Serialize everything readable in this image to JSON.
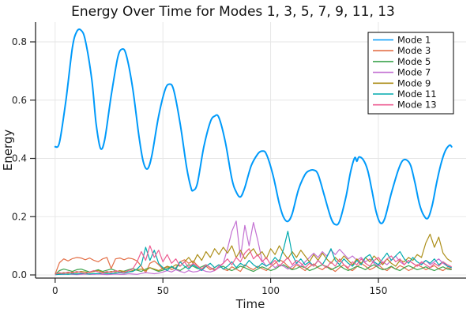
{
  "chart_data": {
    "type": "line",
    "title": "Energy Over Time for Modes 1, 3, 5, 7, 9, 11, 13",
    "xlabel": "Time",
    "ylabel": "Energy",
    "xlim": [
      -9.1,
      190.7
    ],
    "ylim": [
      -0.0108,
      0.8678
    ],
    "xticks": [
      0,
      50,
      100,
      150
    ],
    "yticks": [
      0.0,
      0.2,
      0.4,
      0.6,
      0.8
    ],
    "grid": true,
    "legend_position": "top-right",
    "background_color": "#FFFFFF",
    "grid_color": "#E5E5E5",
    "axis_color": "#262626",
    "series": [
      {
        "name": "Mode 1",
        "color": "#009AFA",
        "width": 2.0,
        "smooth": true,
        "x": [
          0,
          2,
          5,
          8,
          10,
          12,
          14,
          17,
          19,
          21,
          23,
          26,
          29,
          31,
          33,
          36,
          39,
          41,
          43,
          45,
          48,
          51,
          53,
          55,
          58,
          61,
          63,
          64,
          66,
          69,
          72,
          74,
          76,
          79,
          82,
          84,
          86,
          88,
          91,
          94,
          96,
          98,
          101,
          104,
          106,
          108,
          110,
          113,
          116,
          118,
          120,
          122,
          125,
          128,
          130,
          132,
          135,
          137,
          139,
          140,
          141,
          143,
          145,
          147,
          149,
          151,
          153,
          156,
          159,
          161,
          163,
          165,
          167,
          169,
          171,
          173,
          175,
          177,
          179,
          181,
          183,
          184
        ],
        "y": [
          0.44,
          0.455,
          0.6,
          0.78,
          0.835,
          0.84,
          0.805,
          0.67,
          0.52,
          0.435,
          0.465,
          0.615,
          0.745,
          0.775,
          0.755,
          0.64,
          0.47,
          0.385,
          0.365,
          0.415,
          0.545,
          0.635,
          0.655,
          0.635,
          0.52,
          0.37,
          0.3,
          0.29,
          0.315,
          0.44,
          0.525,
          0.545,
          0.54,
          0.455,
          0.33,
          0.285,
          0.268,
          0.3,
          0.375,
          0.415,
          0.425,
          0.415,
          0.345,
          0.245,
          0.198,
          0.184,
          0.21,
          0.295,
          0.345,
          0.358,
          0.36,
          0.345,
          0.27,
          0.195,
          0.173,
          0.185,
          0.27,
          0.35,
          0.402,
          0.39,
          0.405,
          0.395,
          0.36,
          0.29,
          0.215,
          0.178,
          0.195,
          0.28,
          0.355,
          0.39,
          0.395,
          0.375,
          0.315,
          0.245,
          0.205,
          0.195,
          0.24,
          0.315,
          0.38,
          0.425,
          0.445,
          0.44
        ]
      },
      {
        "name": "Mode 3",
        "color": "#E36F46",
        "width": 1.2,
        "smooth": false,
        "x_start": 0,
        "x_step": 2,
        "y": [
          0.003,
          0.042,
          0.055,
          0.048,
          0.056,
          0.06,
          0.058,
          0.052,
          0.058,
          0.05,
          0.045,
          0.055,
          0.06,
          0.022,
          0.055,
          0.058,
          0.052,
          0.058,
          0.055,
          0.048,
          0.03,
          0.008,
          0.04,
          0.048,
          0.035,
          0.02,
          0.028,
          0.018,
          0.025,
          0.045,
          0.052,
          0.04,
          0.048,
          0.032,
          0.02,
          0.03,
          0.018,
          0.025,
          0.035,
          0.02,
          0.015,
          0.028,
          0.02,
          0.012,
          0.035,
          0.025,
          0.018,
          0.03,
          0.022,
          0.015,
          0.028,
          0.04,
          0.052,
          0.045,
          0.03,
          0.02,
          0.035,
          0.025,
          0.015,
          0.028,
          0.038,
          0.025,
          0.018,
          0.03,
          0.022,
          0.012,
          0.025,
          0.035,
          0.02,
          0.015,
          0.028,
          0.04,
          0.03,
          0.018,
          0.025,
          0.035,
          0.022,
          0.015,
          0.028,
          0.02,
          0.032,
          0.025,
          0.015,
          0.022,
          0.035,
          0.028,
          0.018,
          0.025,
          0.032,
          0.02,
          0.015,
          0.025,
          0.02
        ]
      },
      {
        "name": "Mode 5",
        "color": "#3DA44E",
        "width": 1.2,
        "smooth": false,
        "x_start": 0,
        "x_step": 2,
        "y": [
          0.002,
          0.015,
          0.02,
          0.016,
          0.012,
          0.018,
          0.02,
          0.015,
          0.01,
          0.014,
          0.018,
          0.012,
          0.016,
          0.02,
          0.015,
          0.01,
          0.013,
          0.018,
          0.022,
          0.016,
          0.012,
          0.02,
          0.025,
          0.018,
          0.012,
          0.016,
          0.022,
          0.028,
          0.02,
          0.015,
          0.025,
          0.035,
          0.03,
          0.022,
          0.028,
          0.035,
          0.025,
          0.018,
          0.025,
          0.03,
          0.02,
          0.015,
          0.022,
          0.03,
          0.025,
          0.018,
          0.012,
          0.02,
          0.028,
          0.022,
          0.015,
          0.02,
          0.03,
          0.035,
          0.025,
          0.018,
          0.022,
          0.03,
          0.025,
          0.015,
          0.02,
          0.028,
          0.035,
          0.028,
          0.018,
          0.025,
          0.032,
          0.022,
          0.015,
          0.022,
          0.03,
          0.025,
          0.018,
          0.028,
          0.035,
          0.025,
          0.018,
          0.022,
          0.03,
          0.02,
          0.015,
          0.025,
          0.032,
          0.025,
          0.018,
          0.022,
          0.028,
          0.02,
          0.015,
          0.022,
          0.028,
          0.02,
          0.018
        ]
      },
      {
        "name": "Mode 7",
        "color": "#C371D2",
        "width": 1.2,
        "smooth": false,
        "x_start": 0,
        "x_step": 2,
        "y": [
          0.001,
          0.002,
          0.002,
          0.003,
          0.002,
          0.001,
          0.002,
          0.003,
          0.002,
          0.002,
          0.003,
          0.002,
          0.001,
          0.002,
          0.003,
          0.002,
          0.002,
          0.004,
          0.003,
          0.002,
          0.005,
          0.008,
          0.006,
          0.004,
          0.006,
          0.01,
          0.015,
          0.01,
          0.018,
          0.012,
          0.008,
          0.015,
          0.01,
          0.012,
          0.018,
          0.012,
          0.01,
          0.015,
          0.025,
          0.04,
          0.09,
          0.15,
          0.185,
          0.06,
          0.17,
          0.1,
          0.18,
          0.12,
          0.05,
          0.03,
          0.04,
          0.025,
          0.035,
          0.03,
          0.02,
          0.03,
          0.04,
          0.03,
          0.045,
          0.06,
          0.075,
          0.06,
          0.08,
          0.065,
          0.085,
          0.07,
          0.088,
          0.072,
          0.055,
          0.065,
          0.05,
          0.06,
          0.045,
          0.055,
          0.04,
          0.03,
          0.045,
          0.035,
          0.05,
          0.065,
          0.045,
          0.035,
          0.05,
          0.04,
          0.03,
          0.04,
          0.05,
          0.035,
          0.045,
          0.055,
          0.04,
          0.03,
          0.025
        ]
      },
      {
        "name": "Mode 9",
        "color": "#AC8E18",
        "width": 1.2,
        "smooth": false,
        "x_start": 0,
        "x_step": 2,
        "y": [
          0.002,
          0.005,
          0.008,
          0.006,
          0.01,
          0.008,
          0.012,
          0.01,
          0.008,
          0.012,
          0.015,
          0.01,
          0.008,
          0.012,
          0.01,
          0.015,
          0.012,
          0.01,
          0.015,
          0.018,
          0.02,
          0.015,
          0.025,
          0.02,
          0.015,
          0.022,
          0.03,
          0.025,
          0.035,
          0.03,
          0.045,
          0.06,
          0.04,
          0.07,
          0.05,
          0.08,
          0.06,
          0.09,
          0.07,
          0.095,
          0.075,
          0.1,
          0.06,
          0.085,
          0.055,
          0.075,
          0.09,
          0.065,
          0.08,
          0.055,
          0.09,
          0.07,
          0.1,
          0.075,
          0.055,
          0.08,
          0.06,
          0.085,
          0.065,
          0.045,
          0.07,
          0.05,
          0.075,
          0.055,
          0.04,
          0.06,
          0.045,
          0.065,
          0.05,
          0.035,
          0.055,
          0.04,
          0.06,
          0.045,
          0.065,
          0.05,
          0.035,
          0.055,
          0.04,
          0.03,
          0.05,
          0.045,
          0.06,
          0.05,
          0.07,
          0.06,
          0.11,
          0.14,
          0.095,
          0.13,
          0.075,
          0.055,
          0.045
        ]
      },
      {
        "name": "Mode 11",
        "color": "#00AAAE",
        "width": 1.2,
        "smooth": false,
        "x_start": 0,
        "x_step": 2,
        "y": [
          0.001,
          0.002,
          0.003,
          0.002,
          0.004,
          0.003,
          0.005,
          0.004,
          0.003,
          0.005,
          0.004,
          0.006,
          0.005,
          0.004,
          0.006,
          0.008,
          0.006,
          0.01,
          0.012,
          0.02,
          0.035,
          0.095,
          0.05,
          0.085,
          0.04,
          0.025,
          0.015,
          0.03,
          0.02,
          0.045,
          0.03,
          0.02,
          0.035,
          0.025,
          0.015,
          0.03,
          0.04,
          0.025,
          0.035,
          0.02,
          0.03,
          0.045,
          0.025,
          0.04,
          0.03,
          0.05,
          0.035,
          0.025,
          0.04,
          0.03,
          0.04,
          0.06,
          0.045,
          0.09,
          0.15,
          0.07,
          0.04,
          0.055,
          0.035,
          0.045,
          0.03,
          0.05,
          0.035,
          0.06,
          0.09,
          0.05,
          0.035,
          0.055,
          0.04,
          0.03,
          0.05,
          0.035,
          0.06,
          0.07,
          0.045,
          0.035,
          0.055,
          0.075,
          0.05,
          0.065,
          0.08,
          0.055,
          0.04,
          0.06,
          0.045,
          0.035,
          0.05,
          0.04,
          0.055,
          0.035,
          0.045,
          0.03,
          0.025
        ]
      },
      {
        "name": "Mode 13",
        "color": "#ED5E93",
        "width": 1.2,
        "smooth": false,
        "x_start": 0,
        "x_step": 2,
        "y": [
          0.002,
          0.008,
          0.005,
          0.01,
          0.006,
          0.012,
          0.008,
          0.005,
          0.01,
          0.015,
          0.01,
          0.006,
          0.012,
          0.008,
          0.015,
          0.01,
          0.008,
          0.015,
          0.02,
          0.045,
          0.08,
          0.05,
          0.1,
          0.06,
          0.085,
          0.045,
          0.07,
          0.04,
          0.055,
          0.03,
          0.045,
          0.025,
          0.04,
          0.03,
          0.02,
          0.035,
          0.025,
          0.015,
          0.03,
          0.04,
          0.055,
          0.035,
          0.06,
          0.045,
          0.075,
          0.09,
          0.055,
          0.07,
          0.045,
          0.06,
          0.035,
          0.05,
          0.03,
          0.045,
          0.06,
          0.035,
          0.05,
          0.04,
          0.025,
          0.04,
          0.03,
          0.05,
          0.035,
          0.025,
          0.045,
          0.03,
          0.055,
          0.035,
          0.025,
          0.045,
          0.035,
          0.055,
          0.04,
          0.03,
          0.05,
          0.06,
          0.04,
          0.055,
          0.065,
          0.045,
          0.055,
          0.035,
          0.05,
          0.04,
          0.03,
          0.045,
          0.035,
          0.025,
          0.04,
          0.03,
          0.045,
          0.035,
          0.028
        ]
      }
    ]
  }
}
